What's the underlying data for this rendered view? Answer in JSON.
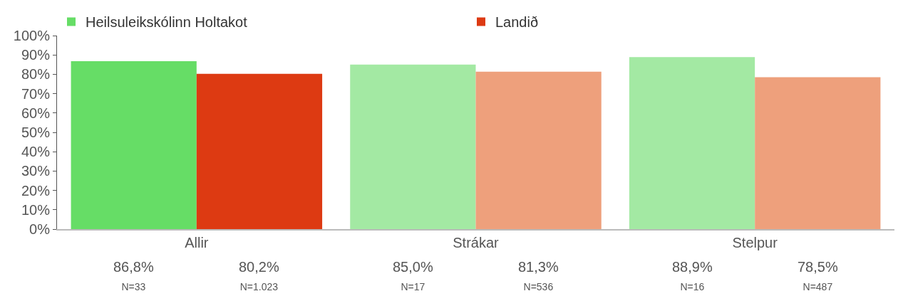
{
  "chart_data": {
    "type": "bar",
    "categories": [
      "Allir",
      "Strákar",
      "Stelpur"
    ],
    "series": [
      {
        "name": "Heilsuleikskólinn Holtakot",
        "colors": [
          "#66dd66",
          "#a3e9a3",
          "#a3e9a3"
        ],
        "values": [
          86.8,
          85.0,
          88.9
        ],
        "value_labels": [
          "86,8%\nN=33",
          "85,0%\nN=17",
          "88,9%\nN=16"
        ]
      },
      {
        "name": "Landið",
        "colors": [
          "#dd3a12",
          "#eea07c",
          "#eea07c"
        ],
        "values": [
          80.2,
          81.3,
          78.5
        ],
        "value_labels": [
          "80,2%\nN=1.023",
          "81,3%\nN=536",
          "78,5%\nN=487"
        ]
      }
    ],
    "ylim": [
      0,
      100
    ],
    "yticks": [
      {
        "value": 0,
        "label": "0%"
      },
      {
        "value": 10,
        "label": "10%"
      },
      {
        "value": 20,
        "label": "20%"
      },
      {
        "value": 30,
        "label": "30%"
      },
      {
        "value": 40,
        "label": "40%"
      },
      {
        "value": 50,
        "label": "50%"
      },
      {
        "value": 60,
        "label": "60%"
      },
      {
        "value": 70,
        "label": "70%"
      },
      {
        "value": 80,
        "label": "80%"
      },
      {
        "value": 90,
        "label": "90%"
      },
      {
        "value": 100,
        "label": "100%"
      }
    ],
    "legend": "top"
  }
}
